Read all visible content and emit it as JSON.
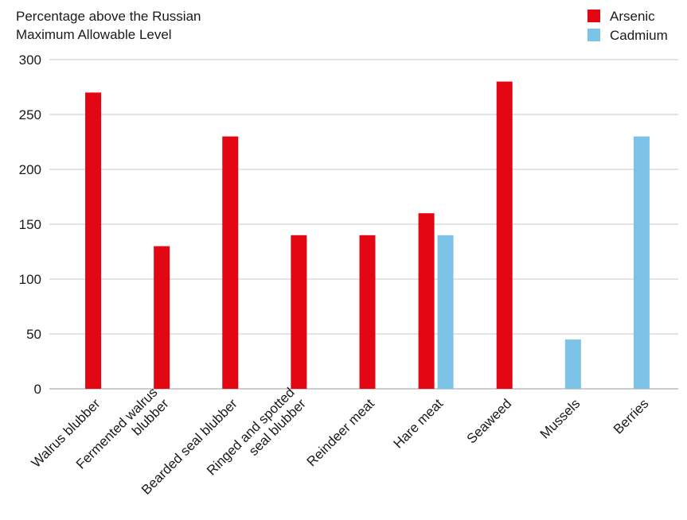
{
  "chart_data": {
    "type": "bar",
    "ylabel_lines": [
      "Percentage above the Russian",
      "Maximum Allowable Level"
    ],
    "xlabel": "",
    "ylim": [
      0,
      300
    ],
    "yticks": [
      0,
      50,
      100,
      150,
      200,
      250,
      300
    ],
    "grid": true,
    "legend_position": "top-right",
    "categories": [
      [
        "Walrus blubber"
      ],
      [
        "Fermented walrus",
        "blubber"
      ],
      [
        "Bearded seal blubber"
      ],
      [
        "Ringed and spotted",
        "seal blubber"
      ],
      [
        "Reindeer meat"
      ],
      [
        "Hare meat"
      ],
      [
        "Seaweed"
      ],
      [
        "Mussels"
      ],
      [
        "Berries"
      ]
    ],
    "series": [
      {
        "name": "Arsenic",
        "color": "#e30613",
        "values": [
          270,
          130,
          230,
          140,
          140,
          160,
          280,
          null,
          null
        ]
      },
      {
        "name": "Cadmium",
        "color": "#7dc3e8",
        "values": [
          null,
          null,
          null,
          null,
          null,
          140,
          null,
          45,
          230
        ]
      }
    ]
  }
}
